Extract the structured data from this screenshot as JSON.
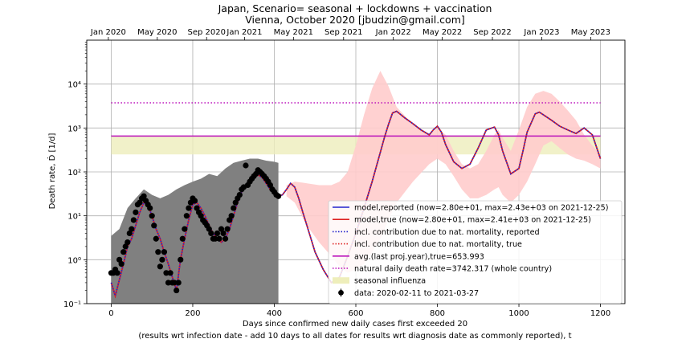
{
  "chart_data": {
    "type": "line",
    "title": "Japan, Scenario= seasonal + lockdowns + vaccination",
    "subtitle": "Vienna, October 2020 [jbudzin@gmail.com]",
    "xlabel": "Days since confirmed new daily cases first exceeded 20",
    "xlabel2": "(results wrt infection date - add 10 days to all dates for results wrt diagnosis date as commonly reported), t",
    "ylabel": "Death rate, Ḋ [1/d]",
    "xlim": [
      -60,
      1260
    ],
    "ylim": [
      0.1,
      100000
    ],
    "yscale": "log",
    "grid": true,
    "legend_position": "lower right",
    "x_ticks": [
      0,
      200,
      400,
      600,
      800,
      1000,
      1200
    ],
    "x_tick_labels": [
      "0",
      "200",
      "400",
      "600",
      "800",
      "1000",
      "1200"
    ],
    "y_ticks": [
      0.1,
      1,
      10,
      100,
      1000,
      10000
    ],
    "y_tick_labels": [
      "10⁻¹",
      "10⁰",
      "10¹",
      "10²",
      "10³",
      "10⁴"
    ],
    "top_axis": {
      "ticks": [
        -7,
        113,
        234,
        327,
        447,
        570,
        692,
        812,
        935,
        1056,
        1176
      ],
      "labels": [
        "Jan 2020",
        "May 2020",
        "Sep 2020",
        "Jan 2021",
        "May 2021",
        "Sep 2021",
        "Jan 2022",
        "May 2022",
        "Sep 2022",
        "Jan 2023",
        "May 2023"
      ]
    },
    "colors": {
      "model_reported": "#2222cc",
      "model_true": "#dd2222",
      "nat_reported": "#2222cc",
      "nat_true": "#dd2222",
      "avg": "#bb11bb",
      "natural": "#bb11bb",
      "seasonal": "#eeeebb",
      "band": "#ffcccc",
      "data_band": "#808080",
      "data": "#000000"
    },
    "legend": [
      {
        "label": "model,reported (now=2.80e+01, max=2.43e+03 on 2021-12-25)",
        "style": "solid",
        "color": "#2222cc"
      },
      {
        "label": "model,true (now=2.80e+01, max=2.41e+03 on 2021-12-25)",
        "style": "solid",
        "color": "#dd2222"
      },
      {
        "label": "incl. contribution due to nat. mortality, reported",
        "style": "dotted",
        "color": "#2222cc"
      },
      {
        "label": "incl. contribution due to nat. mortality, true",
        "style": "dotted",
        "color": "#dd2222"
      },
      {
        "label": "avg.(last proj.year),true=653.993",
        "style": "solid",
        "color": "#bb11bb"
      },
      {
        "label": "natural daily death rate=3742.317 (whole country)",
        "style": "dotted",
        "color": "#bb11bb"
      },
      {
        "label": "seasonal influenza",
        "style": "patch",
        "color": "#eeeebb"
      },
      {
        "label": "data: 2020-02-11 to 2021-03-27",
        "style": "marker",
        "color": "#000000"
      }
    ],
    "avg_line": {
      "value": 653.993,
      "x_range": [
        0,
        1200
      ]
    },
    "natural_line": {
      "value": 3742.317,
      "x_range": [
        0,
        1200
      ]
    },
    "seasonal_band": {
      "low": 250,
      "high": 650,
      "x_range": [
        0,
        1200
      ]
    },
    "model_series": {
      "x": [
        0,
        10,
        20,
        30,
        40,
        50,
        60,
        70,
        80,
        90,
        100,
        110,
        120,
        130,
        140,
        150,
        160,
        170,
        180,
        190,
        200,
        210,
        220,
        230,
        240,
        250,
        260,
        270,
        280,
        290,
        300,
        310,
        320,
        330,
        340,
        350,
        360,
        370,
        380,
        390,
        400,
        410,
        420,
        430,
        440,
        450,
        460,
        470,
        480,
        490,
        500,
        520,
        540,
        560,
        580,
        600,
        620,
        640,
        660,
        670,
        680,
        690,
        700,
        720,
        740,
        760,
        780,
        790,
        800,
        810,
        820,
        840,
        860,
        880,
        900,
        920,
        940,
        950,
        960,
        980,
        1000,
        1010,
        1020,
        1040,
        1050,
        1060,
        1080,
        1100,
        1120,
        1140,
        1160,
        1180,
        1200
      ],
      "y": [
        0.3,
        0.15,
        0.35,
        0.8,
        2,
        3,
        6,
        12,
        20,
        18,
        10,
        5,
        3,
        1.5,
        0.8,
        0.4,
        0.2,
        1,
        3,
        8,
        18,
        20,
        15,
        10,
        6,
        4,
        3,
        2.5,
        3,
        5,
        10,
        20,
        35,
        50,
        65,
        80,
        85,
        75,
        55,
        40,
        32,
        28,
        30,
        40,
        55,
        45,
        25,
        12,
        6,
        3,
        1.5,
        0.6,
        0.3,
        0.4,
        1.2,
        4,
        15,
        60,
        280,
        600,
        1200,
        2200,
        2400,
        1700,
        1250,
        900,
        700,
        900,
        1100,
        800,
        420,
        170,
        120,
        150,
        350,
        900,
        1050,
        700,
        300,
        90,
        120,
        300,
        800,
        2100,
        2300,
        2000,
        1500,
        1100,
        900,
        750,
        1000,
        700,
        200
      ]
    },
    "uncertainty_band": {
      "x": [
        430,
        450,
        480,
        510,
        540,
        560,
        580,
        600,
        620,
        640,
        660,
        680,
        700,
        740,
        780,
        800,
        820,
        840,
        860,
        880,
        900,
        920,
        940,
        950,
        960,
        980,
        1000,
        1020,
        1040,
        1060,
        1080,
        1100,
        1120,
        1140,
        1160,
        1180,
        1200
      ],
      "low": [
        28,
        20,
        6,
        2.5,
        1.2,
        0.7,
        0.5,
        0.6,
        0.8,
        1.5,
        3,
        8,
        20,
        60,
        150,
        200,
        150,
        80,
        40,
        25,
        25,
        30,
        40,
        45,
        30,
        20,
        30,
        60,
        150,
        400,
        500,
        350,
        250,
        200,
        180,
        150,
        120
      ],
      "high": [
        50,
        60,
        55,
        50,
        50,
        60,
        100,
        400,
        2000,
        8000,
        20000,
        9000,
        3000,
        1200,
        700,
        1000,
        700,
        300,
        150,
        120,
        150,
        300,
        700,
        900,
        600,
        300,
        900,
        3000,
        6000,
        7000,
        6000,
        4000,
        2500,
        1500,
        700,
        400,
        250
      ]
    },
    "data_band": {
      "x": [
        0,
        20,
        40,
        60,
        80,
        100,
        120,
        140,
        160,
        180,
        200,
        220,
        240,
        260,
        280,
        300,
        320,
        340,
        360,
        380,
        400,
        410
      ],
      "low": [
        0.1,
        0.1,
        0.1,
        0.1,
        0.1,
        0.1,
        0.1,
        0.1,
        0.1,
        0.1,
        0.1,
        0.1,
        0.1,
        0.1,
        0.1,
        0.1,
        0.1,
        0.1,
        0.1,
        0.1,
        0.1,
        0.1
      ],
      "high": [
        3.5,
        5,
        15,
        25,
        40,
        30,
        25,
        30,
        40,
        50,
        60,
        70,
        90,
        80,
        120,
        160,
        180,
        200,
        200,
        180,
        170,
        160
      ]
    },
    "data_points": {
      "x": [
        0,
        5,
        10,
        15,
        20,
        25,
        30,
        35,
        40,
        45,
        50,
        55,
        60,
        65,
        70,
        75,
        80,
        85,
        90,
        95,
        100,
        105,
        110,
        115,
        120,
        125,
        130,
        135,
        140,
        145,
        150,
        155,
        160,
        165,
        170,
        175,
        180,
        185,
        190,
        195,
        200,
        205,
        210,
        215,
        220,
        225,
        230,
        235,
        240,
        245,
        250,
        255,
        260,
        265,
        270,
        275,
        280,
        285,
        290,
        295,
        300,
        305,
        310,
        315,
        320,
        325,
        330,
        335,
        340,
        345,
        350,
        355,
        360,
        365,
        370,
        375,
        380,
        385,
        390,
        395,
        400,
        405,
        410
      ],
      "y": [
        0.5,
        0.5,
        0.6,
        0.5,
        1.0,
        0.8,
        1.5,
        2.0,
        2.5,
        4.0,
        5.0,
        8.0,
        12,
        18,
        20,
        25,
        28,
        22,
        18,
        15,
        10,
        6,
        3,
        1.5,
        0.7,
        1.0,
        1.5,
        0.5,
        0.3,
        0.5,
        0.3,
        0.3,
        0.2,
        0.3,
        1.0,
        3.0,
        5.0,
        10,
        15,
        20,
        25,
        22,
        15,
        12,
        10,
        8,
        7,
        6,
        5,
        4,
        3,
        3,
        4,
        3,
        5,
        4,
        3,
        5,
        8,
        10,
        15,
        20,
        25,
        30,
        40,
        45,
        140,
        50,
        60,
        70,
        80,
        90,
        110,
        100,
        90,
        80,
        70,
        60,
        50,
        40,
        35,
        30,
        28
      ]
    }
  }
}
